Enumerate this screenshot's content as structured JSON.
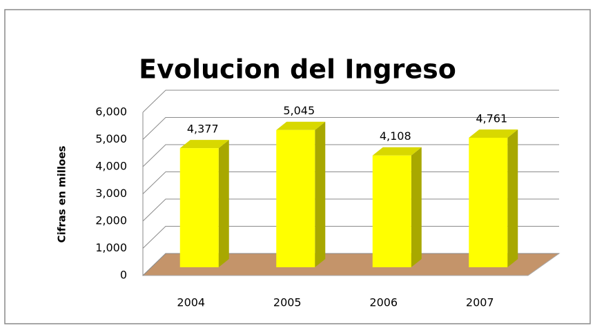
{
  "chart_data": {
    "type": "bar3d",
    "title": "Evolucion del Ingreso",
    "y_label": "Cifras en milloes",
    "categories": [
      "2004",
      "2005",
      "2006",
      "2007"
    ],
    "values": [
      4377,
      5045,
      4108,
      4761
    ],
    "value_labels": [
      "4,377",
      "5,045",
      "4,108",
      "4,761"
    ],
    "color": "#ffff00",
    "ylim": [
      0,
      6000
    ],
    "yticks": [
      0,
      {
        "value": 1000,
        "label": "1,000"
      },
      {
        "value": 2000,
        "label": "2,000"
      },
      {
        "value": 3000,
        "label": "3,000"
      },
      {
        "value": 4000,
        "label": "4,000"
      },
      {
        "value": 5000,
        "label": "5,000"
      },
      {
        "value": 6000,
        "label": "6,000"
      }
    ],
    "grid": true
  }
}
